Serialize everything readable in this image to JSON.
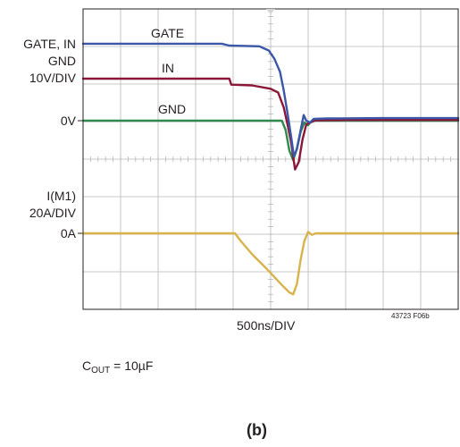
{
  "chart_data": {
    "type": "line",
    "x_unit_label": "500ns/DIV",
    "x_divisions": 10,
    "y_divisions": 8,
    "left_labels": {
      "upper_group": [
        "GATE, IN",
        "GND",
        "10V/DIV"
      ],
      "zero_v": "0V",
      "lower_group": [
        "I(M1)",
        "20A/DIV"
      ],
      "zero_a": "0A"
    },
    "trace_labels": {
      "gate": "GATE",
      "in": "IN",
      "gnd": "GND"
    },
    "figure_code": "43723 F06b",
    "colors": {
      "gate": "#3a57a8",
      "in": "#8b1738",
      "gnd": "#2e8b4e",
      "current": "#d8b24a",
      "grid": "#b8b8b8",
      "frame": "#231f20"
    },
    "series": [
      {
        "key": "gate",
        "unit": "V",
        "points": [
          [
            0,
            20.5
          ],
          [
            3.7,
            20.5
          ],
          [
            3.9,
            20.0
          ],
          [
            4.7,
            19.8
          ],
          [
            4.95,
            18.7
          ],
          [
            5.1,
            16.5
          ],
          [
            5.25,
            13.0
          ],
          [
            5.35,
            8.0
          ],
          [
            5.45,
            2.0
          ],
          [
            5.55,
            -4.5
          ],
          [
            5.62,
            -9.5
          ],
          [
            5.7,
            -7.5
          ],
          [
            5.8,
            -2.5
          ],
          [
            5.88,
            1.5
          ],
          [
            5.95,
            0.0
          ],
          [
            6.05,
            -0.5
          ],
          [
            6.15,
            0.5
          ],
          [
            6.5,
            0.6
          ],
          [
            8.0,
            0.7
          ],
          [
            10.0,
            0.7
          ]
        ]
      },
      {
        "key": "in",
        "unit": "V",
        "points": [
          [
            0,
            11.2
          ],
          [
            3.9,
            11.2
          ],
          [
            3.95,
            9.6
          ],
          [
            4.5,
            9.4
          ],
          [
            5.0,
            8.5
          ],
          [
            5.2,
            7.5
          ],
          [
            5.35,
            3.5
          ],
          [
            5.45,
            -1.0
          ],
          [
            5.55,
            -6.0
          ],
          [
            5.65,
            -13.0
          ],
          [
            5.75,
            -11.0
          ],
          [
            5.85,
            -5.0
          ],
          [
            5.95,
            -1.0
          ],
          [
            6.05,
            -0.5
          ],
          [
            6.2,
            0.1
          ],
          [
            7.0,
            0.2
          ],
          [
            10.0,
            0.2
          ]
        ]
      },
      {
        "key": "gnd",
        "unit": "V",
        "points": [
          [
            0,
            0
          ],
          [
            5.3,
            0
          ],
          [
            5.4,
            -2.5
          ],
          [
            5.5,
            -8.0
          ],
          [
            5.6,
            -10.5
          ],
          [
            5.7,
            -7.5
          ],
          [
            5.8,
            -3.0
          ],
          [
            5.9,
            -0.5
          ],
          [
            6.0,
            -1.2
          ],
          [
            6.1,
            0.0
          ],
          [
            6.3,
            0.0
          ],
          [
            10.0,
            0.0
          ]
        ]
      },
      {
        "key": "current",
        "unit": "A",
        "points": [
          [
            0,
            0
          ],
          [
            4.05,
            0
          ],
          [
            4.2,
            -4.0
          ],
          [
            4.5,
            -11.0
          ],
          [
            4.9,
            -19.0
          ],
          [
            5.3,
            -27.5
          ],
          [
            5.5,
            -31.5
          ],
          [
            5.6,
            -32.5
          ],
          [
            5.7,
            -27.0
          ],
          [
            5.8,
            -14.0
          ],
          [
            5.9,
            -4.0
          ],
          [
            6.0,
            0.8
          ],
          [
            6.1,
            -0.8
          ],
          [
            6.2,
            0.0
          ],
          [
            10.0,
            0.0
          ]
        ]
      }
    ]
  },
  "caption": {
    "prefix": "C",
    "subscript": "OUT",
    "suffix": " = 10µF"
  },
  "figure_label": "(b)"
}
